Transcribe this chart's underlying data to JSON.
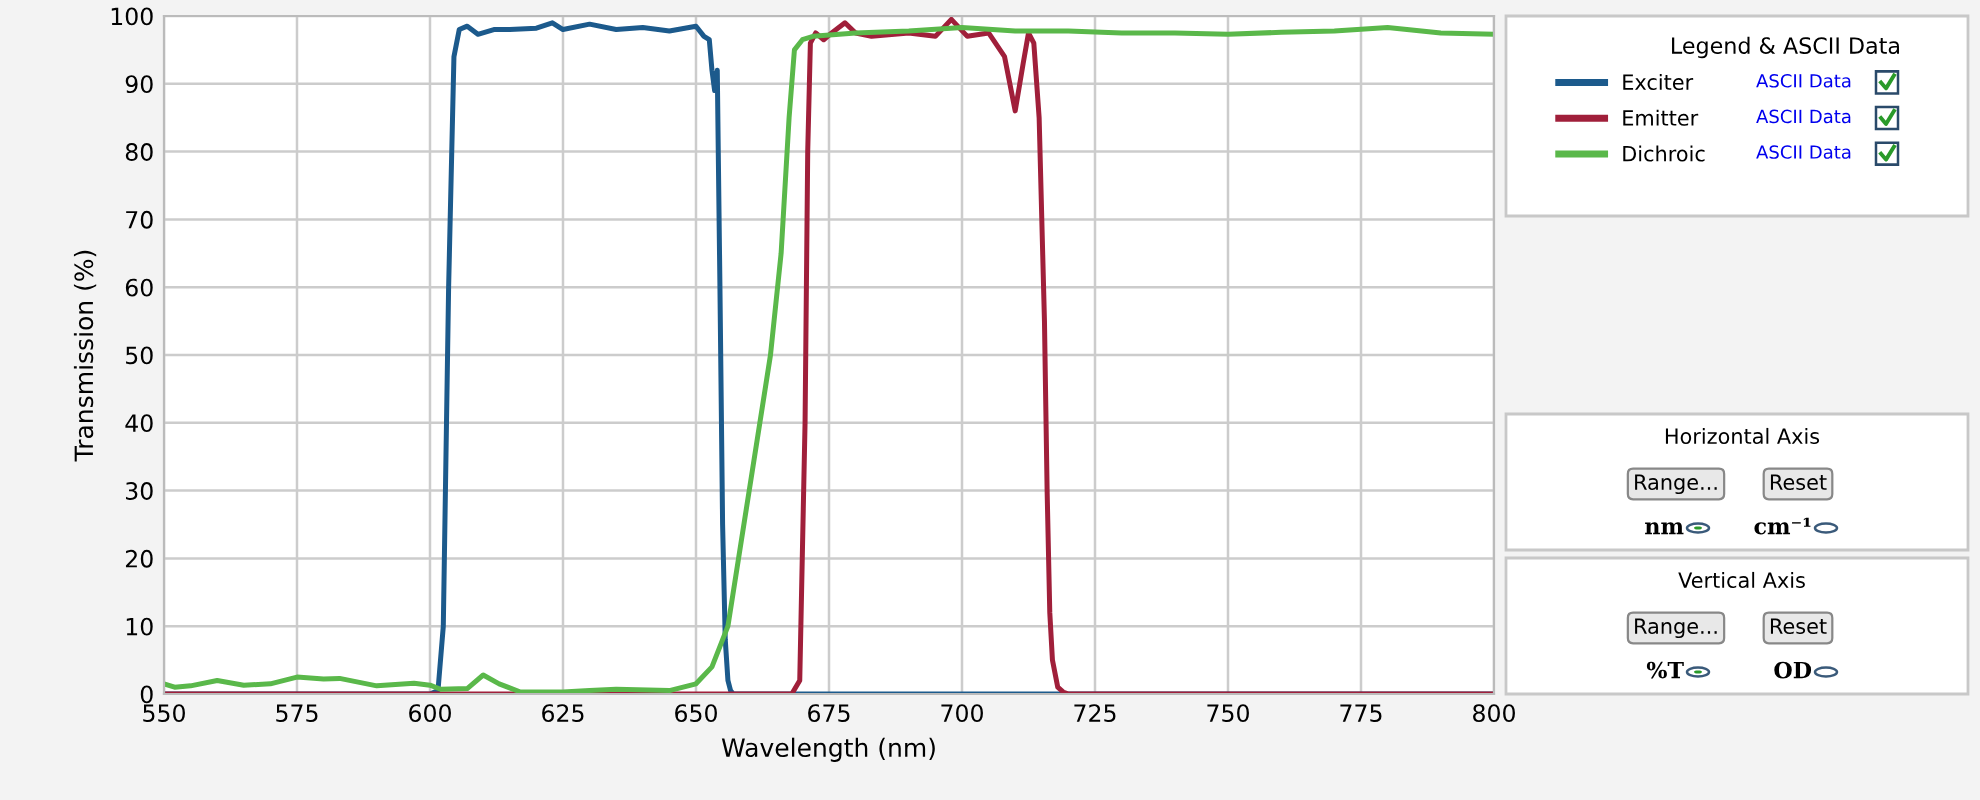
{
  "chart_data": {
    "type": "line",
    "xlabel": "Wavelength (nm)",
    "ylabel": "Transmission (%)",
    "legend_title": "Legend & ASCII Data",
    "xlim": [
      550,
      800
    ],
    "xticks": [
      550,
      575,
      600,
      625,
      650,
      675,
      700,
      725,
      750,
      775,
      800
    ],
    "ylim": [
      0,
      100
    ],
    "yticks": [
      0,
      10,
      20,
      30,
      40,
      50,
      60,
      70,
      80,
      90,
      100
    ],
    "grid": true,
    "legend": "right",
    "marker": "none",
    "line_style": "solid",
    "series": [
      {
        "name": "Exciter",
        "color": "#1c5a8c",
        "x": [
          550,
          600,
          601.5,
          602.5,
          603.5,
          604.5,
          605.5,
          607,
          609,
          612,
          615,
          620,
          623,
          625,
          630,
          635,
          640,
          645,
          650,
          651.5,
          652.5,
          653,
          653.5,
          654,
          654.5,
          655,
          655.5,
          656,
          656.5,
          657,
          700,
          800
        ],
        "values": [
          0,
          0,
          0.5,
          10,
          60,
          94,
          98,
          98.5,
          97.3,
          98,
          98,
          98.2,
          99,
          98,
          98.8,
          98,
          98.3,
          97.8,
          98.5,
          97,
          96.5,
          92,
          89,
          92,
          60,
          25,
          8,
          2,
          0.5,
          0,
          0,
          0
        ]
      },
      {
        "name": "Emitter",
        "color": "#a01f3a",
        "x": [
          550,
          668,
          669.5,
          670.5,
          671,
          671.5,
          672.5,
          674,
          675.5,
          678,
          680,
          683,
          690,
          695,
          698,
          701,
          705,
          708,
          710,
          711.5,
          712.5,
          713.5,
          714.5,
          715.5,
          716,
          716.5,
          717,
          718,
          719,
          720,
          800
        ],
        "values": [
          0,
          0,
          2,
          40,
          80,
          96,
          97.5,
          96.5,
          97.5,
          99,
          97.5,
          97,
          97.5,
          97,
          99.5,
          97,
          97.5,
          94,
          86,
          93,
          97.5,
          96,
          85,
          55,
          30,
          12,
          5,
          1,
          0.3,
          0,
          0
        ]
      },
      {
        "name": "Dichroic",
        "color": "#5ab84a",
        "x": [
          550,
          552,
          555,
          560,
          565,
          570,
          575,
          580,
          583,
          590,
          597,
          600,
          602,
          607,
          610,
          613,
          617,
          625,
          630,
          635,
          645,
          650,
          653,
          656,
          658,
          660,
          662,
          664,
          666,
          667.5,
          668.5,
          670,
          672,
          680,
          690,
          700,
          710,
          720,
          730,
          740,
          750,
          760,
          770,
          780,
          790,
          800
        ],
        "values": [
          1.5,
          1,
          1.2,
          2,
          1.3,
          1.5,
          2.5,
          2.2,
          2.3,
          1.2,
          1.6,
          1.3,
          0.7,
          0.8,
          2.8,
          1.5,
          0.3,
          0.3,
          0.5,
          0.7,
          0.5,
          1.5,
          4,
          10,
          20,
          30,
          40,
          50,
          65,
          85,
          95,
          96.5,
          97,
          97.5,
          97.8,
          98.3,
          97.8,
          97.8,
          97.5,
          97.5,
          97.3,
          97.6,
          97.8,
          98.3,
          97.5,
          97.3
        ]
      }
    ],
    "annotations": [
      "ASCII Data",
      "ASCII Data",
      "ASCII Data",
      "Horizontal Axis",
      "Range...",
      "Reset",
      "nm",
      "cm⁻¹",
      "Vertical Axis",
      "Range...",
      "Reset",
      "%T",
      "OD"
    ]
  }
}
